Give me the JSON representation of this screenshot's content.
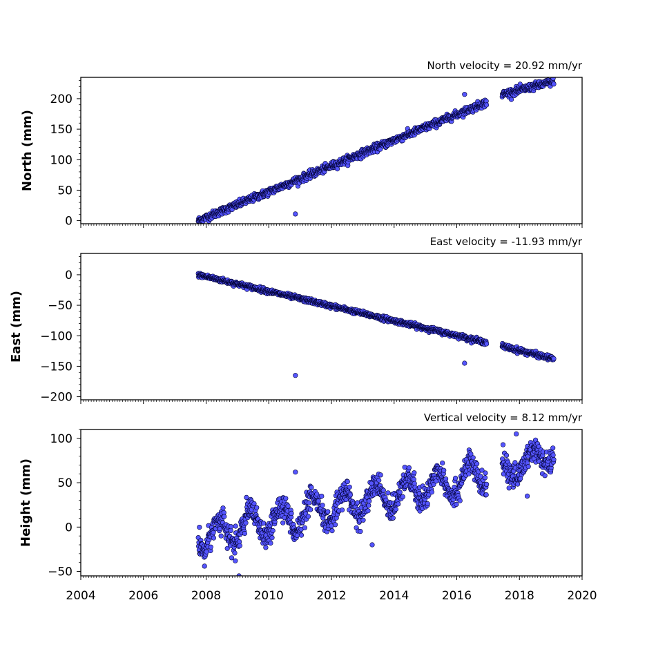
{
  "chart_data": [
    {
      "type": "scatter",
      "title": "North velocity = 20.92 mm/yr",
      "ylabel": "North (mm)",
      "xlim": [
        2004,
        2020
      ],
      "ylim": [
        -5,
        235
      ],
      "yticks": [
        0,
        50,
        100,
        150,
        200
      ],
      "marker_color": "#5555ff",
      "edge_color": "#000033",
      "segments": [
        {
          "x0": 2007.75,
          "y0": 0,
          "x1": 2016.95,
          "y1": 194,
          "noise": 3,
          "seasonal": 0
        },
        {
          "x0": 2017.45,
          "y0": 207,
          "x1": 2019.1,
          "y1": 228,
          "noise": 3,
          "seasonal": 0
        }
      ],
      "outliers": [
        {
          "x": 2010.85,
          "y": 11
        },
        {
          "x": 2016.25,
          "y": 207
        }
      ]
    },
    {
      "type": "scatter",
      "title": "East velocity = -11.93 mm/yr",
      "ylabel": "East (mm)",
      "xlim": [
        2004,
        2020
      ],
      "ylim": [
        -205,
        35
      ],
      "yticks": [
        0,
        -50,
        -100,
        -150,
        -200
      ],
      "marker_color": "#5555ff",
      "edge_color": "#000033",
      "segments": [
        {
          "x0": 2007.75,
          "y0": 0,
          "x1": 2016.95,
          "y1": -111,
          "noise": 1.8,
          "seasonal": 0
        },
        {
          "x0": 2017.45,
          "y0": -117,
          "x1": 2019.1,
          "y1": -138,
          "noise": 2,
          "seasonal": 0
        }
      ],
      "outliers": [
        {
          "x": 2010.85,
          "y": -165
        },
        {
          "x": 2016.25,
          "y": -145
        }
      ]
    },
    {
      "type": "scatter",
      "title": "Vertical velocity = 8.12 mm/yr",
      "ylabel": "Height (mm)",
      "xlim": [
        2004,
        2020
      ],
      "ylim": [
        -55,
        110
      ],
      "yticks": [
        -50,
        0,
        50,
        100
      ],
      "xticks": [
        2004,
        2006,
        2008,
        2010,
        2012,
        2014,
        2016,
        2018,
        2020
      ],
      "marker_color": "#5555ff",
      "edge_color": "#000033",
      "segments": [
        {
          "x0": 2007.75,
          "y0": -12,
          "x1": 2016.95,
          "y1": 60,
          "noise": 7,
          "seasonal": 16
        },
        {
          "x0": 2017.45,
          "y0": 62,
          "x1": 2019.1,
          "y1": 84,
          "noise": 7,
          "seasonal": 12
        }
      ],
      "outliers": [
        {
          "x": 2010.85,
          "y": 62
        },
        {
          "x": 2009.05,
          "y": -55
        },
        {
          "x": 2007.95,
          "y": -44
        },
        {
          "x": 2013.3,
          "y": -20
        },
        {
          "x": 2017.9,
          "y": 105
        },
        {
          "x": 2018.25,
          "y": 35
        }
      ]
    }
  ]
}
